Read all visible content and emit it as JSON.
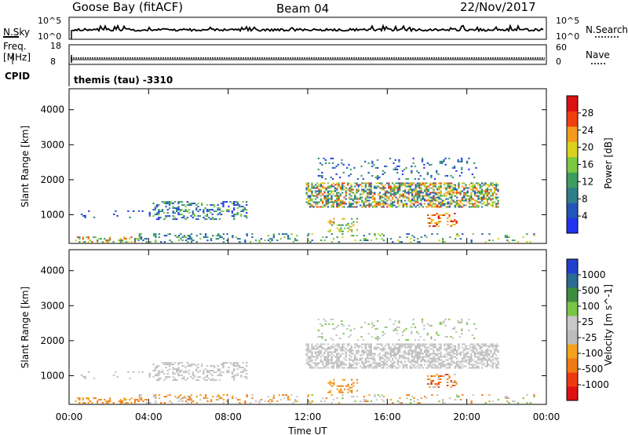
{
  "header": {
    "station": "Goose Bay (fitACF)",
    "beam": "Beam 04",
    "date": "22/Nov/2017"
  },
  "noise_panel": {
    "left_label": "N.Sky",
    "right_label": "N.Search",
    "tick_top": "10^5",
    "tick_bottom": "10^0"
  },
  "freq_panel": {
    "left_label_1": "Freq.",
    "left_label_2": "[MHz]",
    "right_label": "Nave",
    "left_ticks": [
      "18",
      "8"
    ],
    "right_ticks": [
      "60",
      "0"
    ]
  },
  "cpid": {
    "label": "CPID",
    "value": "themis (tau) -3310"
  },
  "colors": {
    "power": [
      "#2233ee",
      "#2255bb",
      "#2f7f88",
      "#3b9e5e",
      "#7ac943",
      "#d9d21c",
      "#f39b1e",
      "#ee4010",
      "#dd1111"
    ],
    "velocity": [
      "#e01111",
      "#ee3a10",
      "#f07a14",
      "#f2a21c",
      "#bdbdbd",
      "#c9c9c9",
      "#79c545",
      "#3c8e3e",
      "#2a6c93",
      "#2240cc"
    ]
  },
  "chart_data": [
    {
      "type": "heatmap",
      "name": "power",
      "ylabel": "Slant Range [km]",
      "xlabel": "",
      "ylim": [
        180,
        4600
      ],
      "yticks": [
        "1000",
        "2000",
        "3000",
        "4000"
      ],
      "xticks": [
        "00:00",
        "04:00",
        "08:00",
        "12:00",
        "16:00",
        "20:00",
        "00:00"
      ],
      "colorbar_label": "Power [dB]",
      "colorbar_ticks": [
        "28",
        "24",
        "20",
        "16",
        "12",
        "8",
        "4"
      ],
      "regions": [
        {
          "t0": 0.3,
          "t1": 3.5,
          "r0": 200,
          "r1": 380,
          "density": 0.35,
          "lvl": [
            2,
            7
          ]
        },
        {
          "t0": 3.5,
          "t1": 12.0,
          "r0": 200,
          "r1": 450,
          "density": 0.2,
          "lvl": [
            1,
            4
          ]
        },
        {
          "t0": 4.2,
          "t1": 8.9,
          "r0": 850,
          "r1": 1350,
          "density": 0.35,
          "lvl": [
            0,
            4
          ]
        },
        {
          "t0": 0.5,
          "t1": 4.2,
          "r0": 900,
          "r1": 1100,
          "density": 0.08,
          "lvl": [
            0,
            2
          ]
        },
        {
          "t0": 11.9,
          "t1": 21.6,
          "r0": 1200,
          "r1": 1900,
          "density": 0.55,
          "lvl": [
            1,
            7
          ]
        },
        {
          "t0": 12.5,
          "t1": 20.5,
          "r0": 2000,
          "r1": 2600,
          "density": 0.1,
          "lvl": [
            0,
            3
          ]
        },
        {
          "t0": 13.0,
          "t1": 14.5,
          "r0": 500,
          "r1": 900,
          "density": 0.25,
          "lvl": [
            3,
            6
          ]
        },
        {
          "t0": 18.0,
          "t1": 19.5,
          "r0": 650,
          "r1": 1050,
          "density": 0.25,
          "lvl": [
            5,
            8
          ]
        },
        {
          "t0": 12.0,
          "t1": 24.0,
          "r0": 200,
          "r1": 450,
          "density": 0.12,
          "lvl": [
            1,
            5
          ]
        }
      ]
    },
    {
      "type": "heatmap",
      "name": "velocity",
      "ylabel": "Slant Range [km]",
      "xlabel": "Time UT",
      "ylim": [
        180,
        4600
      ],
      "yticks": [
        "1000",
        "2000",
        "3000",
        "4000"
      ],
      "xticks": [
        "00:00",
        "04:00",
        "08:00",
        "12:00",
        "16:00",
        "20:00",
        "00:00"
      ],
      "colorbar_label": "Velocity [m s^-1]",
      "colorbar_ticks": [
        "1000",
        "500",
        "100",
        "25",
        "-25",
        "-100",
        "-500",
        "-1000"
      ],
      "regions": [
        {
          "t0": 0.3,
          "t1": 3.5,
          "r0": 200,
          "r1": 380,
          "density": 0.35,
          "lvl": [
            2,
            3
          ]
        },
        {
          "t0": 3.5,
          "t1": 12.0,
          "r0": 200,
          "r1": 450,
          "density": 0.2,
          "lvl": [
            2,
            5
          ]
        },
        {
          "t0": 4.2,
          "t1": 8.9,
          "r0": 850,
          "r1": 1350,
          "density": 0.35,
          "lvl": [
            4,
            5
          ]
        },
        {
          "t0": 0.5,
          "t1": 4.2,
          "r0": 900,
          "r1": 1100,
          "density": 0.08,
          "lvl": [
            4,
            5
          ]
        },
        {
          "t0": 11.9,
          "t1": 21.6,
          "r0": 1200,
          "r1": 1900,
          "density": 0.55,
          "lvl": [
            4,
            5
          ]
        },
        {
          "t0": 12.5,
          "t1": 20.5,
          "r0": 2000,
          "r1": 2600,
          "density": 0.1,
          "lvl": [
            4,
            6
          ]
        },
        {
          "t0": 13.0,
          "t1": 14.5,
          "r0": 500,
          "r1": 900,
          "density": 0.25,
          "lvl": [
            2,
            3
          ]
        },
        {
          "t0": 18.0,
          "t1": 19.5,
          "r0": 650,
          "r1": 1050,
          "density": 0.25,
          "lvl": [
            1,
            4
          ]
        },
        {
          "t0": 12.0,
          "t1": 24.0,
          "r0": 200,
          "r1": 450,
          "density": 0.12,
          "lvl": [
            2,
            6
          ]
        }
      ]
    }
  ]
}
